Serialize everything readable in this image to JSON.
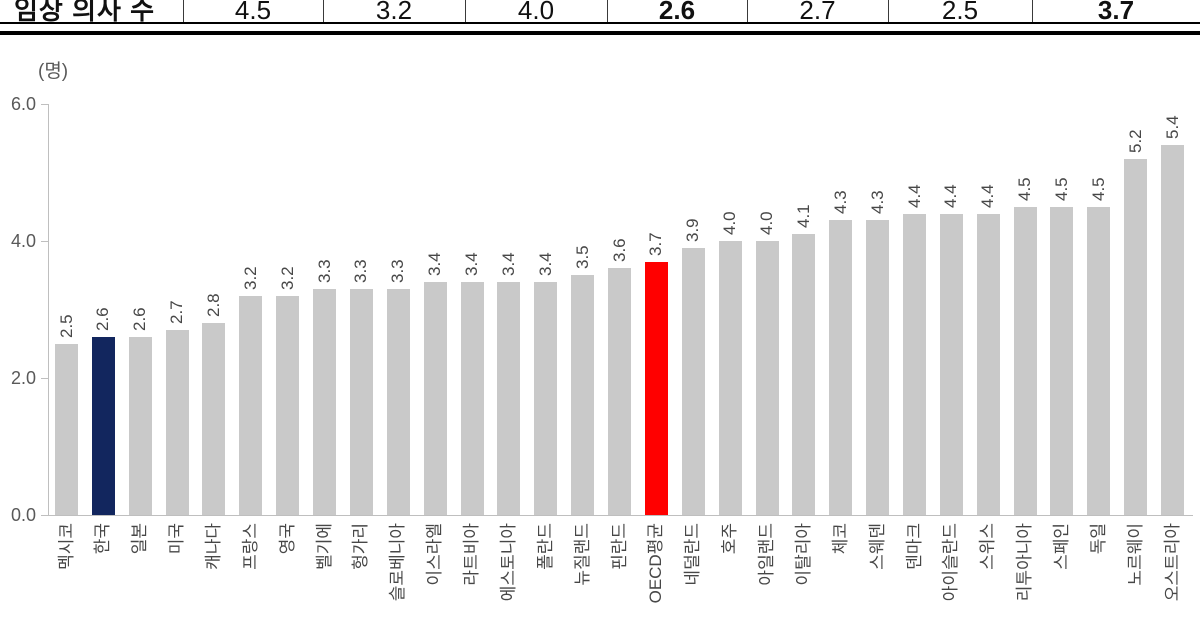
{
  "header_table": {
    "row_label": "임상 의사 수",
    "cells": [
      {
        "value": "4.5",
        "bold": false
      },
      {
        "value": "3.2",
        "bold": false
      },
      {
        "value": "4.0",
        "bold": false
      },
      {
        "value": "2.6",
        "bold": true
      },
      {
        "value": "2.7",
        "bold": false
      },
      {
        "value": "2.5",
        "bold": false
      },
      {
        "value": "3.7",
        "bold": true
      }
    ]
  },
  "chart_data": {
    "type": "bar",
    "title": "",
    "unit_label": "(명)",
    "xlabel": "",
    "ylabel": "",
    "ylim": [
      0.0,
      6.0
    ],
    "ytick_labels": [
      "6.0",
      "4.0",
      "2.0",
      "0.0"
    ],
    "grid": false,
    "legend_position": "none",
    "default_bar_color": "#C9C9C9",
    "bars": [
      {
        "label": "멕시코",
        "value": 2.5
      },
      {
        "label": "한국",
        "value": 2.6,
        "color": "#12265E"
      },
      {
        "label": "일본",
        "value": 2.6
      },
      {
        "label": "미국",
        "value": 2.7
      },
      {
        "label": "캐나다",
        "value": 2.8
      },
      {
        "label": "프랑스",
        "value": 3.2
      },
      {
        "label": "영국",
        "value": 3.2
      },
      {
        "label": "벨기에",
        "value": 3.3
      },
      {
        "label": "헝가리",
        "value": 3.3
      },
      {
        "label": "슬로베니아",
        "value": 3.3
      },
      {
        "label": "이스라엘",
        "value": 3.4
      },
      {
        "label": "라트비아",
        "value": 3.4
      },
      {
        "label": "에스토니아",
        "value": 3.4
      },
      {
        "label": "폴란드",
        "value": 3.4
      },
      {
        "label": "뉴질랜드",
        "value": 3.5
      },
      {
        "label": "핀란드",
        "value": 3.6
      },
      {
        "label": "OECD평균",
        "value": 3.7,
        "color": "#FF0000"
      },
      {
        "label": "네덜란드",
        "value": 3.9
      },
      {
        "label": "호주",
        "value": 4.0
      },
      {
        "label": "아일랜드",
        "value": 4.0
      },
      {
        "label": "이탈리아",
        "value": 4.1
      },
      {
        "label": "체코",
        "value": 4.3
      },
      {
        "label": "스웨덴",
        "value": 4.3
      },
      {
        "label": "덴마크",
        "value": 4.4
      },
      {
        "label": "아이슬란드",
        "value": 4.4
      },
      {
        "label": "스위스",
        "value": 4.4
      },
      {
        "label": "리투아니아",
        "value": 4.5
      },
      {
        "label": "스페인",
        "value": 4.5
      },
      {
        "label": "독일",
        "value": 4.5
      },
      {
        "label": "노르웨이",
        "value": 5.2
      },
      {
        "label": "오스트리아",
        "value": 5.4
      }
    ]
  },
  "colors": {
    "default_bar": "#C9C9C9",
    "korea_bar": "#12265E",
    "oecd_avg_bar": "#FF0000",
    "axis_line": "#BFBFBF",
    "label_text": "#474747",
    "table_border": "#000000"
  }
}
